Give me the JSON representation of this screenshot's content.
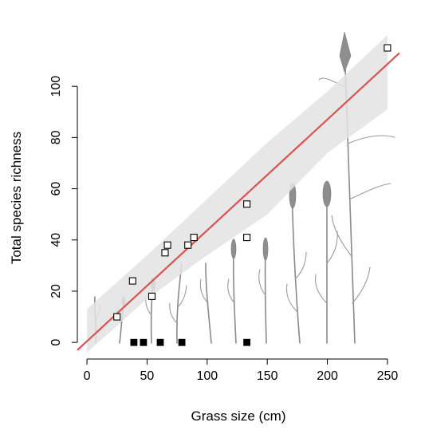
{
  "chart_data": {
    "type": "scatter",
    "xlabel": "Grass size (cm)",
    "ylabel": "Total species richness",
    "xlim": [
      -8,
      260
    ],
    "ylim": [
      -4,
      120
    ],
    "x_ticks": [
      0,
      50,
      100,
      150,
      200,
      250
    ],
    "y_ticks": [
      0,
      20,
      40,
      60,
      80,
      100
    ],
    "grid": false,
    "legend": "none",
    "series": [
      {
        "marker": "open-square",
        "points": [
          {
            "x": 25,
            "y": 10
          },
          {
            "x": 38,
            "y": 24
          },
          {
            "x": 54,
            "y": 18
          },
          {
            "x": 65,
            "y": 35
          },
          {
            "x": 67,
            "y": 38
          },
          {
            "x": 84,
            "y": 38
          },
          {
            "x": 89,
            "y": 41
          },
          {
            "x": 133,
            "y": 41
          },
          {
            "x": 133,
            "y": 54
          },
          {
            "x": 250,
            "y": 115
          }
        ]
      },
      {
        "marker": "filled-square",
        "points": [
          {
            "x": 39,
            "y": 0
          },
          {
            "x": 47,
            "y": 0
          },
          {
            "x": 61,
            "y": 0
          },
          {
            "x": 79,
            "y": 0
          },
          {
            "x": 133,
            "y": 0
          }
        ]
      }
    ],
    "fit_line": {
      "x": [
        -8,
        260
      ],
      "y": [
        -3,
        113
      ]
    },
    "confidence_band": {
      "x": [
        0,
        50,
        100,
        150,
        200,
        250
      ],
      "upper": [
        13,
        34,
        56,
        78,
        98,
        120
      ],
      "lower": [
        -4,
        17,
        34,
        50,
        74,
        91
      ]
    },
    "colors": {
      "fit_line": "#d9534f",
      "confidence_band": "#e3e3e3",
      "marker_open_fill": "#ffffff",
      "marker_filled": "#000000",
      "illustration": "#8a8a8a"
    }
  }
}
